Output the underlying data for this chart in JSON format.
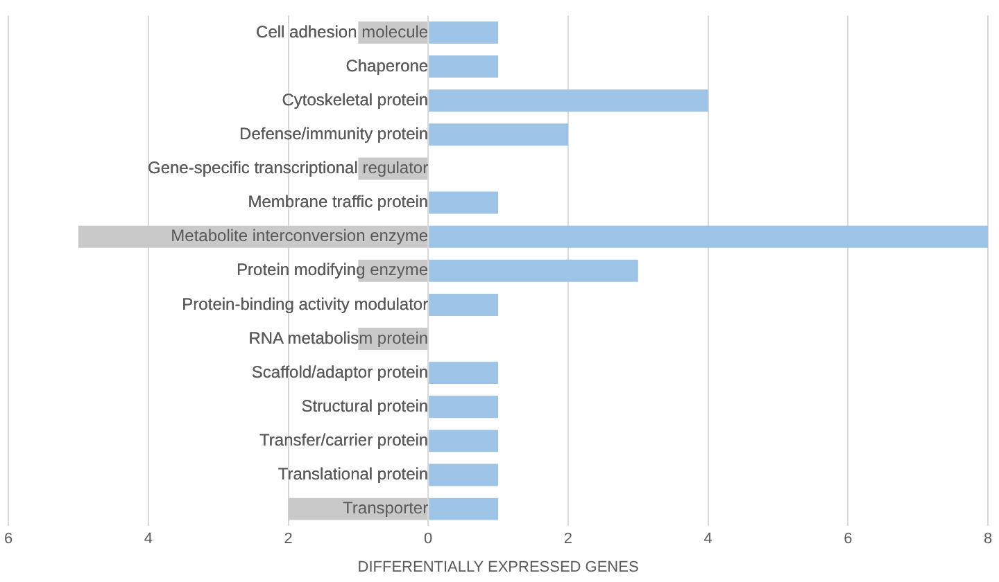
{
  "chart_data": {
    "type": "bar",
    "orientation": "horizontal",
    "stacked": true,
    "xlabel": "DIFFERENTIALLY EXPRESSED GENES",
    "categories": [
      "Cell adhesion molecule",
      "Chaperone",
      "Cytoskeletal protein",
      "Defense/immunity protein",
      "Gene-specific transcriptional regulator",
      "Membrane traffic protein",
      "Metabolite interconversion enzyme",
      "Protein modifying enzyme",
      "Protein-binding activity modulator",
      "RNA metabolism protein",
      "Scaffold/adaptor protein",
      "Structural protein",
      "Transfer/carrier protein",
      "Translational protein",
      "Transporter"
    ],
    "series": [
      {
        "color": "#c9c9c9",
        "values": [
          -1,
          0,
          0,
          0,
          -1,
          0,
          -5,
          -1,
          0,
          -1,
          0,
          0,
          0,
          0,
          -2
        ]
      },
      {
        "color": "#9dc3e6",
        "values": [
          1,
          1,
          4,
          2,
          0,
          1,
          8,
          3,
          1,
          0,
          1,
          1,
          1,
          1,
          1
        ]
      }
    ],
    "xlim": [
      -6,
      8
    ],
    "xticks": [
      {
        "value": -6,
        "label": "6"
      },
      {
        "value": -4,
        "label": "4"
      },
      {
        "value": -2,
        "label": "2"
      },
      0,
      2,
      4,
      6,
      8
    ],
    "grid": "x",
    "legend": false
  }
}
